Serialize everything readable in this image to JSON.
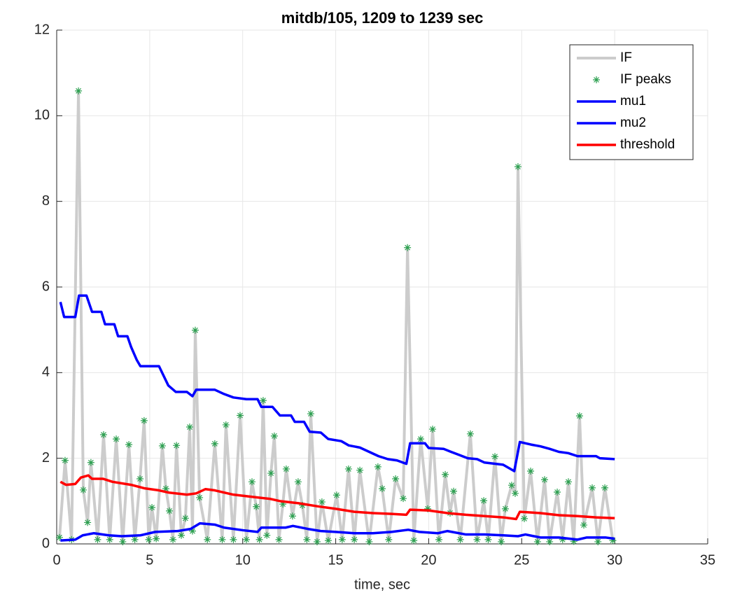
{
  "chart_data": {
    "type": "line",
    "title": "mitdb/105, 1209 to 1239 sec",
    "x_label": "time, sec",
    "xlim": [
      0,
      35
    ],
    "xticks": [
      0,
      5,
      10,
      15,
      20,
      25,
      30,
      35
    ],
    "ylim": [
      0,
      12
    ],
    "yticks": [
      0,
      2,
      4,
      6,
      8,
      10,
      12
    ],
    "grid": true,
    "legend": "northeast",
    "series": [
      {
        "name": "IF",
        "color": "#cccccc",
        "kind": "line",
        "width": 4,
        "x": [
          0.15,
          0.45,
          0.8,
          1.17,
          1.43,
          1.66,
          1.84,
          2.2,
          2.52,
          2.85,
          3.2,
          3.55,
          3.88,
          4.2,
          4.48,
          4.7,
          4.95,
          5.12,
          5.35,
          5.68,
          5.87,
          6.06,
          6.25,
          6.44,
          6.7,
          6.92,
          7.15,
          7.3,
          7.45,
          7.68,
          8.1,
          8.5,
          8.9,
          9.1,
          9.5,
          9.86,
          10.2,
          10.5,
          10.73,
          10.9,
          11.1,
          11.3,
          11.52,
          11.7,
          11.95,
          12.16,
          12.34,
          12.68,
          12.98,
          13.21,
          13.45,
          13.66,
          14.0,
          14.26,
          14.6,
          15.05,
          15.35,
          15.69,
          16.0,
          16.3,
          16.8,
          17.27,
          17.5,
          17.85,
          18.22,
          18.63,
          18.86,
          19.2,
          19.57,
          19.95,
          20.21,
          20.55,
          20.89,
          21.15,
          21.34,
          21.7,
          22.24,
          22.6,
          22.96,
          23.2,
          23.56,
          23.9,
          24.12,
          24.46,
          24.65,
          24.8,
          25.14,
          25.48,
          25.85,
          26.23,
          26.5,
          26.91,
          27.2,
          27.51,
          27.8,
          28.11,
          28.34,
          28.79,
          29.1,
          29.47,
          29.9
        ],
        "values": [
          0.15,
          1.95,
          0.1,
          10.58,
          1.26,
          0.5,
          1.9,
          0.1,
          2.55,
          0.1,
          2.45,
          0.05,
          2.32,
          0.1,
          1.52,
          2.88,
          0.1,
          0.85,
          0.12,
          2.29,
          1.29,
          0.77,
          0.1,
          2.3,
          0.2,
          0.6,
          2.73,
          0.3,
          4.99,
          1.08,
          0.1,
          2.34,
          0.1,
          2.78,
          0.1,
          3.0,
          0.1,
          1.45,
          0.87,
          0.1,
          3.35,
          0.2,
          1.65,
          2.52,
          0.1,
          0.93,
          1.75,
          0.65,
          1.45,
          0.9,
          0.1,
          3.04,
          0.05,
          0.98,
          0.08,
          1.14,
          0.1,
          1.75,
          0.1,
          1.72,
          0.05,
          1.8,
          1.29,
          0.1,
          1.52,
          1.06,
          6.92,
          0.08,
          2.45,
          0.82,
          2.68,
          0.1,
          1.62,
          0.72,
          1.23,
          0.1,
          2.57,
          0.1,
          1.01,
          0.1,
          2.04,
          0.05,
          0.82,
          1.37,
          1.18,
          8.81,
          0.59,
          1.7,
          0.05,
          1.5,
          0.05,
          1.21,
          0.1,
          1.45,
          0.06,
          2.99,
          0.44,
          1.31,
          0.05,
          1.31,
          0.08
        ]
      },
      {
        "name": "IF peaks",
        "color": "#2ca050",
        "kind": "scatter",
        "x": [
          0.15,
          0.45,
          0.8,
          1.17,
          1.43,
          1.66,
          1.84,
          2.2,
          2.52,
          2.85,
          3.2,
          3.55,
          3.88,
          4.2,
          4.48,
          4.7,
          4.95,
          5.12,
          5.35,
          5.68,
          5.87,
          6.06,
          6.25,
          6.44,
          6.7,
          6.92,
          7.15,
          7.3,
          7.45,
          7.68,
          8.1,
          8.5,
          8.9,
          9.1,
          9.5,
          9.86,
          10.2,
          10.5,
          10.73,
          10.9,
          11.1,
          11.3,
          11.52,
          11.7,
          11.95,
          12.16,
          12.34,
          12.68,
          12.98,
          13.21,
          13.45,
          13.66,
          14.0,
          14.26,
          14.6,
          15.05,
          15.35,
          15.69,
          16.0,
          16.3,
          16.8,
          17.27,
          17.5,
          17.85,
          18.22,
          18.63,
          18.86,
          19.2,
          19.57,
          19.95,
          20.21,
          20.55,
          20.89,
          21.15,
          21.34,
          21.7,
          22.24,
          22.6,
          22.96,
          23.2,
          23.56,
          23.9,
          24.12,
          24.46,
          24.65,
          24.8,
          25.14,
          25.48,
          25.85,
          26.23,
          26.5,
          26.91,
          27.2,
          27.51,
          27.8,
          28.11,
          28.34,
          28.79,
          29.1,
          29.47,
          29.9
        ],
        "values": [
          0.15,
          1.95,
          0.1,
          10.58,
          1.26,
          0.5,
          1.9,
          0.1,
          2.55,
          0.1,
          2.45,
          0.05,
          2.32,
          0.1,
          1.52,
          2.88,
          0.1,
          0.85,
          0.12,
          2.29,
          1.29,
          0.77,
          0.1,
          2.3,
          0.2,
          0.6,
          2.73,
          0.3,
          4.99,
          1.08,
          0.1,
          2.34,
          0.1,
          2.78,
          0.1,
          3.0,
          0.1,
          1.45,
          0.87,
          0.1,
          3.35,
          0.2,
          1.65,
          2.52,
          0.1,
          0.93,
          1.75,
          0.65,
          1.45,
          0.9,
          0.1,
          3.04,
          0.05,
          0.98,
          0.08,
          1.14,
          0.1,
          1.75,
          0.1,
          1.72,
          0.05,
          1.8,
          1.29,
          0.1,
          1.52,
          1.06,
          6.92,
          0.08,
          2.45,
          0.82,
          2.68,
          0.1,
          1.62,
          0.72,
          1.23,
          0.1,
          2.57,
          0.1,
          1.01,
          0.1,
          2.04,
          0.05,
          0.82,
          1.37,
          1.18,
          8.81,
          0.59,
          1.7,
          0.05,
          1.5,
          0.05,
          1.21,
          0.1,
          1.45,
          0.06,
          2.99,
          0.44,
          1.31,
          0.05,
          1.31,
          0.08
        ]
      },
      {
        "name": "mu1",
        "color": "#0000ff",
        "kind": "line",
        "width": 3.5,
        "x": [
          0.2,
          0.4,
          1.0,
          1.2,
          1.6,
          1.9,
          2.4,
          2.6,
          3.1,
          3.3,
          3.8,
          4.0,
          4.3,
          4.5,
          5.5,
          6.0,
          6.4,
          7.0,
          7.3,
          7.5,
          8.5,
          9.0,
          9.5,
          10.2,
          10.8,
          11.0,
          11.6,
          12.0,
          12.6,
          12.8,
          13.3,
          13.6,
          14.2,
          14.6,
          15.3,
          15.7,
          16.3,
          16.8,
          17.3,
          17.8,
          18.3,
          18.8,
          19.0,
          19.8,
          20.0,
          20.8,
          21.2,
          21.5,
          22.1,
          22.6,
          23.0,
          24.0,
          24.6,
          24.9,
          25.5,
          26.0,
          26.5,
          27.0,
          27.5,
          28.0,
          29.0,
          29.2,
          30.0
        ],
        "values": [
          5.65,
          5.3,
          5.3,
          5.8,
          5.8,
          5.42,
          5.42,
          5.13,
          5.13,
          4.85,
          4.85,
          4.6,
          4.3,
          4.15,
          4.15,
          3.7,
          3.55,
          3.55,
          3.45,
          3.6,
          3.6,
          3.5,
          3.42,
          3.38,
          3.38,
          3.2,
          3.2,
          3.0,
          3.0,
          2.85,
          2.85,
          2.62,
          2.6,
          2.45,
          2.4,
          2.3,
          2.25,
          2.15,
          2.05,
          1.98,
          1.95,
          1.87,
          2.35,
          2.35,
          2.24,
          2.22,
          2.15,
          2.1,
          2.0,
          1.98,
          1.9,
          1.85,
          1.7,
          2.38,
          2.32,
          2.28,
          2.22,
          2.15,
          2.12,
          2.05,
          2.05,
          2.0,
          1.98
        ]
      },
      {
        "name": "mu2",
        "color": "#0000ff",
        "kind": "line",
        "width": 3.5,
        "x": [
          0.2,
          1.0,
          1.4,
          2.0,
          2.8,
          3.5,
          4.5,
          5.3,
          6.5,
          7.2,
          7.7,
          8.5,
          9.0,
          10.0,
          10.8,
          11.0,
          12.3,
          12.7,
          13.5,
          14.2,
          15.0,
          16.0,
          17.0,
          18.0,
          18.9,
          19.5,
          20.5,
          21.0,
          22.0,
          23.0,
          24.0,
          24.8,
          25.2,
          26.0,
          27.0,
          28.0,
          28.5,
          29.5,
          30.0
        ],
        "values": [
          0.08,
          0.1,
          0.2,
          0.25,
          0.2,
          0.18,
          0.2,
          0.28,
          0.3,
          0.35,
          0.48,
          0.45,
          0.38,
          0.32,
          0.28,
          0.38,
          0.38,
          0.42,
          0.35,
          0.3,
          0.28,
          0.25,
          0.25,
          0.28,
          0.33,
          0.28,
          0.25,
          0.3,
          0.22,
          0.22,
          0.2,
          0.18,
          0.22,
          0.15,
          0.15,
          0.1,
          0.15,
          0.15,
          0.12
        ]
      },
      {
        "name": "threshold",
        "color": "#ff0000",
        "kind": "line",
        "width": 3.5,
        "x": [
          0.2,
          0.5,
          1.0,
          1.3,
          1.7,
          1.9,
          2.5,
          3.0,
          4.0,
          4.7,
          5.5,
          6.0,
          7.0,
          7.5,
          8.0,
          8.5,
          9.5,
          10.5,
          11.5,
          12.0,
          13.0,
          14.0,
          15.0,
          16.0,
          17.0,
          18.0,
          18.8,
          19.0,
          20.0,
          21.0,
          22.0,
          23.0,
          24.0,
          24.7,
          24.9,
          26.0,
          27.0,
          28.0,
          29.0,
          30.0
        ],
        "values": [
          1.45,
          1.38,
          1.4,
          1.55,
          1.6,
          1.52,
          1.52,
          1.45,
          1.38,
          1.3,
          1.25,
          1.2,
          1.15,
          1.18,
          1.28,
          1.25,
          1.15,
          1.1,
          1.05,
          1.0,
          0.95,
          0.88,
          0.82,
          0.75,
          0.72,
          0.7,
          0.68,
          0.8,
          0.78,
          0.72,
          0.68,
          0.65,
          0.62,
          0.58,
          0.75,
          0.72,
          0.67,
          0.65,
          0.62,
          0.6
        ]
      }
    ]
  }
}
